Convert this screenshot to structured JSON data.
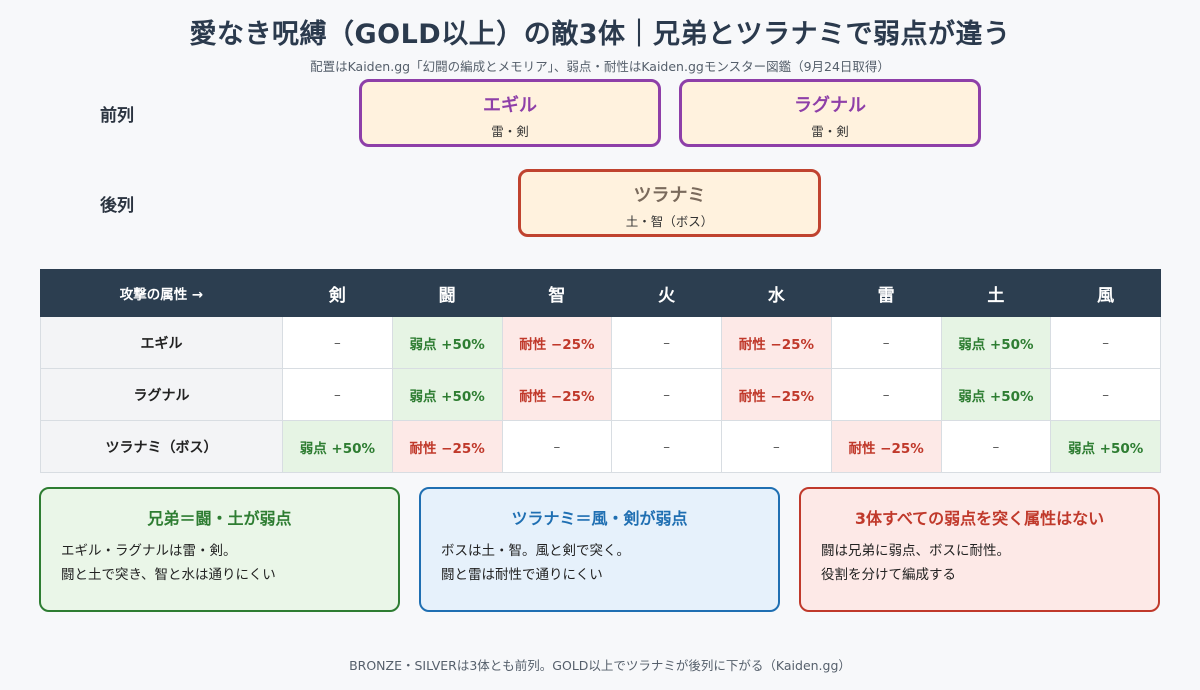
{
  "header": {
    "title": "愛なき呪縛（GOLD以上）の敵3体｜兄弟とツラナミで弱点が違う",
    "subtitle": "配置はKaiden.gg「幻闘の編成とメモリア」、弱点・耐性はKaiden.ggモンスター図鑑（9月24日取得）"
  },
  "formation": {
    "front_label": "前列",
    "back_label": "後列",
    "front": [
      {
        "name": "エギル",
        "attrs": "雷・剣"
      },
      {
        "name": "ラグナル",
        "attrs": "雷・剣"
      }
    ],
    "back": [
      {
        "name": "ツラナミ",
        "attrs": "土・智（ボス）"
      }
    ]
  },
  "matrix": {
    "corner": "攻撃の属性 →",
    "columns": [
      "剣",
      "闘",
      "智",
      "火",
      "水",
      "雷",
      "土",
      "風"
    ],
    "rows": [
      {
        "name": "エギル",
        "cells": [
          "–",
          "弱点 +50%",
          "耐性 −25%",
          "–",
          "耐性 −25%",
          "–",
          "弱点 +50%",
          "–"
        ]
      },
      {
        "name": "ラグナル",
        "cells": [
          "–",
          "弱点 +50%",
          "耐性 −25%",
          "–",
          "耐性 −25%",
          "–",
          "弱点 +50%",
          "–"
        ]
      },
      {
        "name": "ツラナミ（ボス）",
        "cells": [
          "弱点 +50%",
          "耐性 −25%",
          "–",
          "–",
          "–",
          "耐性 −25%",
          "–",
          "弱点 +50%"
        ]
      }
    ],
    "colors": {
      "weak_bg": "#e6f4e4",
      "weak_text": "#2e7d32",
      "resist_bg": "#fde9e7",
      "resist_text": "#c0392b",
      "header_bg": "#2c3e50"
    }
  },
  "cards": [
    {
      "title": "兄弟＝闘・土が弱点",
      "lines": [
        "エギル・ラグナルは雷・剣。",
        "闘と土で突き、智と水は通りにくい"
      ]
    },
    {
      "title": "ツラナミ＝風・剣が弱点",
      "lines": [
        "ボスは土・智。風と剣で突く。",
        "闘と雷は耐性で通りにくい"
      ]
    },
    {
      "title": "3体すべての弱点を突く属性はない",
      "lines": [
        "闘は兄弟に弱点、ボスに耐性。",
        "役割を分けて編成する"
      ]
    }
  ],
  "footer": "BRONZE・SILVERは3体とも前列。GOLD以上でツラナミが後列に下がる（Kaiden.gg）"
}
